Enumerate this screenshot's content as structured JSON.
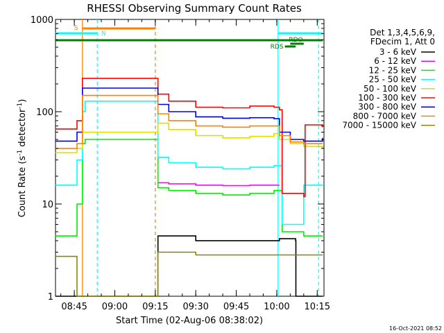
{
  "chart_data": {
    "type": "line",
    "title": "RHESSI Observing Summary Count Rates",
    "xlabel": "Start Time (02-Aug-06 08:38:02)",
    "ylabel_main": "Count Rate (s",
    "ylabel_sup1": "-1",
    "ylabel_mid": " detector",
    "ylabel_sup2": "-1",
    "ylabel_end": ")",
    "yscale": "log",
    "ylim": [
      1,
      1000
    ],
    "xlim": [
      38.03,
      137.5
    ],
    "x_unit": "minutes after 08:00 UT",
    "yticks": [
      {
        "value": 1,
        "label": "1"
      },
      {
        "value": 10,
        "label": "10"
      },
      {
        "value": 100,
        "label": "100"
      },
      {
        "value": 1000,
        "label": "1000"
      }
    ],
    "xticks": [
      {
        "value": 45,
        "label": "08:45"
      },
      {
        "value": 60,
        "label": "09:00"
      },
      {
        "value": 75,
        "label": "09:15"
      },
      {
        "value": 90,
        "label": "09:30"
      },
      {
        "value": 105,
        "label": "09:45"
      },
      {
        "value": 120,
        "label": "10:00"
      },
      {
        "value": 135,
        "label": "10:15"
      }
    ],
    "legend_header": [
      "Det 1,3,4,5,6,9,",
      "FDecim 1, Att 0"
    ],
    "legend_placement": "right",
    "series": [
      {
        "name": "3 - 6 keV",
        "color": "#000000",
        "x": [
          38,
          46,
          46.1,
          74.5,
          76,
          90,
          120,
          121,
          127,
          127.1,
          137
        ],
        "values": [
          1,
          1,
          1,
          1,
          4.5,
          4,
          4,
          4.2,
          4,
          1,
          1
        ]
      },
      {
        "name": "6 - 12 keV",
        "color": "#ff00ff",
        "x": [
          76,
          80,
          90,
          100,
          110,
          120,
          121
        ],
        "values": [
          17,
          16.5,
          16,
          15.8,
          16,
          16,
          16
        ]
      },
      {
        "name": "12 - 25 keV",
        "color": "#00ee00",
        "x": [
          38,
          45,
          46,
          48,
          49,
          76,
          80,
          90,
          100,
          110,
          119,
          121,
          122,
          129,
          130,
          137
        ],
        "values": [
          4.5,
          4.5,
          10,
          45,
          50,
          15,
          14,
          13,
          12.5,
          13,
          14,
          14,
          5,
          5,
          4.5,
          4.5
        ]
      },
      {
        "name": "25 - 50 keV",
        "color": "#00ffff",
        "x": [
          38,
          44,
          46,
          48,
          49,
          76,
          80,
          90,
          100,
          110,
          119,
          121,
          122,
          129,
          130,
          137
        ],
        "values": [
          16,
          16,
          30,
          100,
          130,
          32,
          28,
          25,
          24,
          25,
          26,
          26,
          6,
          6,
          16,
          16
        ]
      },
      {
        "name": "50 - 100 keV",
        "color": "#dddd00",
        "x": [
          38,
          44,
          46,
          48,
          76,
          80,
          90,
          100,
          110,
          119,
          121,
          125,
          130,
          137
        ],
        "values": [
          36,
          36,
          40,
          60,
          75,
          64,
          55,
          52,
          54,
          58,
          50,
          45,
          42,
          40
        ]
      },
      {
        "name": "100 - 300 keV",
        "color": "#ff0000",
        "x": [
          38,
          44,
          46,
          48,
          76,
          80,
          90,
          100,
          110,
          119,
          121,
          122,
          130,
          130.5,
          137
        ],
        "values": [
          65,
          65,
          80,
          230,
          155,
          130,
          112,
          110,
          115,
          112,
          105,
          13,
          12,
          72,
          68
        ]
      },
      {
        "name": "300 - 800 keV",
        "color": "#0000dd",
        "x": [
          38,
          44,
          46,
          48,
          76,
          80,
          90,
          100,
          110,
          119,
          121,
          125,
          130,
          137
        ],
        "values": [
          48,
          48,
          60,
          180,
          120,
          100,
          88,
          85,
          86,
          84,
          60,
          50,
          48,
          52
        ]
      },
      {
        "name": "800 - 7000 keV",
        "color": "#ff8000",
        "x": [
          38,
          44,
          46,
          48,
          76,
          80,
          90,
          100,
          110,
          119,
          121,
          125,
          130,
          137
        ],
        "values": [
          40,
          40,
          45,
          150,
          95,
          80,
          70,
          68,
          70,
          70,
          55,
          47,
          45,
          45
        ]
      },
      {
        "name": "7000 - 15000 keV",
        "color": "#888800",
        "x": [
          38,
          45,
          46,
          76,
          90,
          120,
          122,
          130,
          137
        ],
        "values": [
          2.7,
          2.7,
          1,
          3,
          2.8,
          2.8,
          2.8,
          2.8,
          2.8
        ]
      }
    ],
    "flags": [
      {
        "name": "S",
        "label": "S",
        "color": "#ff8000",
        "x0": 48,
        "x1": 75,
        "band": 1
      },
      {
        "name": "N",
        "label": "N",
        "color": "#00ffff",
        "x0": 38,
        "x1": 53.5,
        "band": 2
      },
      {
        "name": "N2",
        "label": "",
        "color": "#00ffff",
        "x0": 120.5,
        "x1": 137,
        "band": 2
      },
      {
        "name": "RDO",
        "label": "RDO",
        "color": "#008000",
        "x0": 125,
        "x1": 130,
        "band": 3
      },
      {
        "name": "RDS",
        "label": "RDS",
        "color": "#008000",
        "x0": 123,
        "x1": 127,
        "band": 4
      },
      {
        "name": "day",
        "label": "",
        "color": "#008000",
        "x0": 38,
        "x1": 137,
        "band": 5
      }
    ],
    "vlines": [
      {
        "x": 48,
        "color": "#ff8000",
        "dash": false
      },
      {
        "x": 53.5,
        "color": "#00ffff",
        "dash": true
      },
      {
        "x": 75,
        "color": "#ff8000",
        "dash": true
      },
      {
        "x": 120.5,
        "color": "#00ffff",
        "dash": false
      },
      {
        "x": 135.5,
        "color": "#00ffff",
        "dash": true
      }
    ]
  },
  "stamp": "16-Oct-2021 08:52"
}
